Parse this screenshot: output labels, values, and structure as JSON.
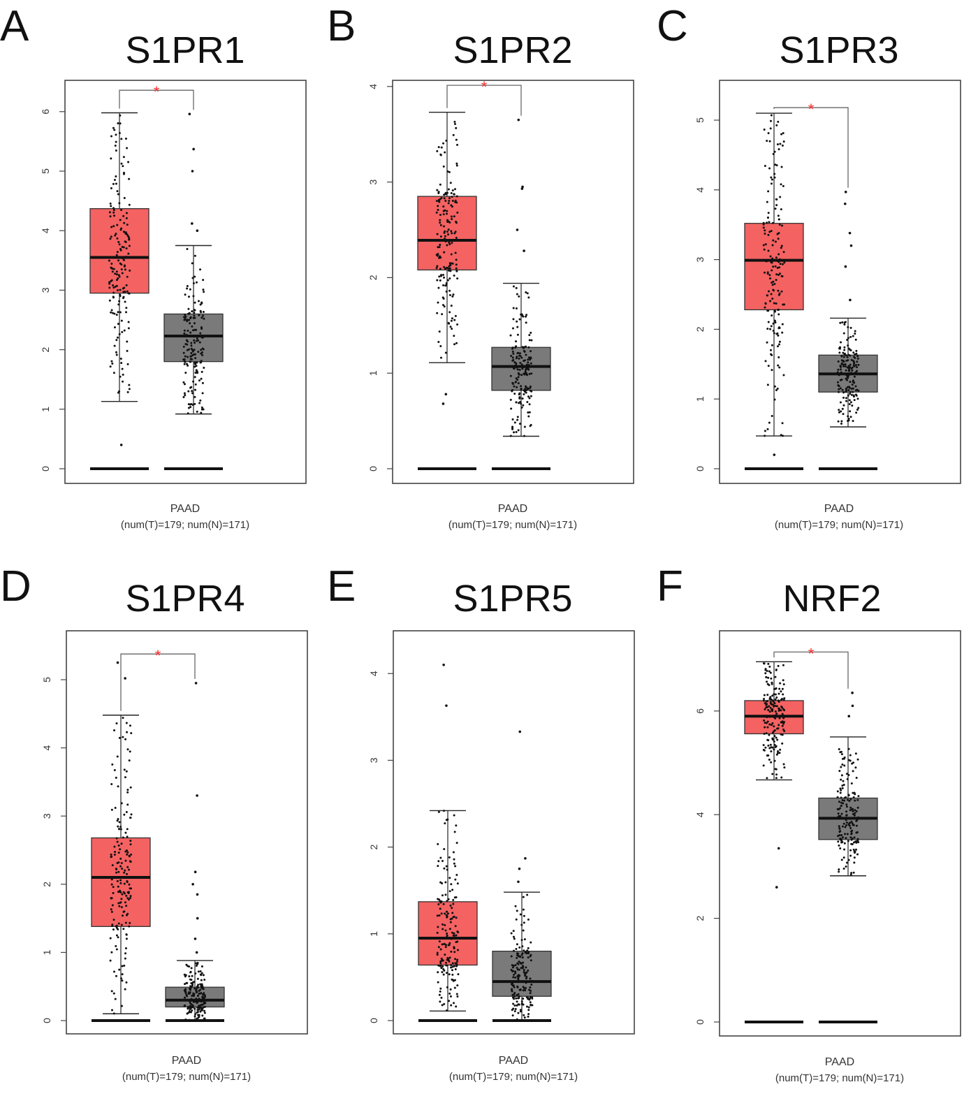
{
  "colors": {
    "tumor": "#f46262",
    "normal": "#7a7a7a",
    "significance": "#ff2a2a"
  },
  "chart_data": [
    {
      "type": "box",
      "panel": "A",
      "title": "S1PR1",
      "xlabel": "PAAD",
      "xsublabel": "(num(T)=179; num(N)=171)",
      "ylim": [
        0,
        6.5
      ],
      "yticks": [
        "0",
        "1",
        "2",
        "3",
        "4",
        "5",
        "6"
      ],
      "significance": "*",
      "groups": [
        {
          "name": "Tumor",
          "n": 179,
          "q1": 2.95,
          "median": 3.55,
          "q3": 4.37,
          "whisker_low": 1.13,
          "whisker_high": 5.98,
          "outliers": [
            0.4
          ]
        },
        {
          "name": "Normal",
          "n": 171,
          "q1": 1.8,
          "median": 2.23,
          "q3": 2.6,
          "whisker_low": 0.92,
          "whisker_high": 3.75,
          "outliers": [
            4.0,
            4.12,
            5.0,
            5.37,
            5.96
          ]
        }
      ]
    },
    {
      "type": "box",
      "panel": "B",
      "title": "S1PR2",
      "xlabel": "PAAD",
      "xsublabel": "(num(T)=179; num(N)=171)",
      "ylim": [
        0,
        4.1
      ],
      "yticks": [
        "0",
        "1",
        "2",
        "3",
        "4"
      ],
      "significance": "*",
      "groups": [
        {
          "name": "Tumor",
          "n": 179,
          "q1": 2.08,
          "median": 2.39,
          "q3": 2.85,
          "whisker_low": 1.11,
          "whisker_high": 3.73,
          "outliers": [
            0.68,
            0.78
          ]
        },
        {
          "name": "Normal",
          "n": 171,
          "q1": 0.82,
          "median": 1.07,
          "q3": 1.27,
          "whisker_low": 0.34,
          "whisker_high": 1.94,
          "outliers": [
            2.28,
            2.5,
            2.93,
            2.95,
            3.65
          ]
        }
      ]
    },
    {
      "type": "box",
      "panel": "C",
      "title": "S1PR3",
      "xlabel": "PAAD",
      "xsublabel": "(num(T)=179; num(N)=171)",
      "ylim": [
        0,
        5.3
      ],
      "yticks": [
        "0",
        "1",
        "2",
        "3",
        "4",
        "5"
      ],
      "significance": "*",
      "groups": [
        {
          "name": "Tumor",
          "n": 179,
          "q1": 2.28,
          "median": 2.99,
          "q3": 3.52,
          "whisker_low": 0.47,
          "whisker_high": 5.1,
          "outliers": [
            0.2
          ]
        },
        {
          "name": "Normal",
          "n": 171,
          "q1": 1.1,
          "median": 1.36,
          "q3": 1.63,
          "whisker_low": 0.6,
          "whisker_high": 2.16,
          "outliers": [
            2.42,
            2.9,
            3.2,
            3.38,
            3.8,
            3.97
          ]
        }
      ]
    },
    {
      "type": "box",
      "panel": "D",
      "title": "S1PR4",
      "xlabel": "PAAD",
      "xsublabel": "(num(T)=179; num(N)=171)",
      "ylim": [
        0,
        5.5
      ],
      "yticks": [
        "0",
        "1",
        "2",
        "3",
        "4",
        "5"
      ],
      "significance": "*",
      "groups": [
        {
          "name": "Tumor",
          "n": 179,
          "q1": 1.38,
          "median": 2.1,
          "q3": 2.68,
          "whisker_low": 0.1,
          "whisker_high": 4.48,
          "outliers": [
            5.02,
            5.25
          ]
        },
        {
          "name": "Normal",
          "n": 171,
          "q1": 0.2,
          "median": 0.3,
          "q3": 0.49,
          "whisker_low": 0.0,
          "whisker_high": 0.88,
          "outliers": [
            1.0,
            1.2,
            1.5,
            1.85,
            2.0,
            2.18,
            3.3,
            4.95
          ]
        }
      ]
    },
    {
      "type": "box",
      "panel": "E",
      "title": "S1PR5",
      "xlabel": "PAAD",
      "xsublabel": "(num(T)=179; num(N)=171)",
      "ylim": [
        0,
        4.4
      ],
      "yticks": [
        "0",
        "1",
        "2",
        "3",
        "4"
      ],
      "significance": "",
      "groups": [
        {
          "name": "Tumor",
          "n": 179,
          "q1": 0.64,
          "median": 0.95,
          "q3": 1.37,
          "whisker_low": 0.11,
          "whisker_high": 2.42,
          "outliers": [
            3.63,
            4.1
          ]
        },
        {
          "name": "Normal",
          "n": 171,
          "q1": 0.28,
          "median": 0.45,
          "q3": 0.8,
          "whisker_low": 0.0,
          "whisker_high": 1.48,
          "outliers": [
            1.6,
            1.75,
            1.87,
            3.33
          ]
        }
      ]
    },
    {
      "type": "box",
      "panel": "F",
      "title": "NRF2",
      "xlabel": "PAAD",
      "xsublabel": "(num(T)=179; num(N)=171)",
      "ylim": [
        0,
        7.3
      ],
      "yticks": [
        "0",
        "2",
        "4",
        "6"
      ],
      "significance": "*",
      "groups": [
        {
          "name": "Tumor",
          "n": 179,
          "q1": 5.56,
          "median": 5.9,
          "q3": 6.2,
          "whisker_low": 4.67,
          "whisker_high": 6.95,
          "outliers": [
            2.6,
            3.35
          ]
        },
        {
          "name": "Normal",
          "n": 171,
          "q1": 3.52,
          "median": 3.93,
          "q3": 4.32,
          "whisker_low": 2.82,
          "whisker_high": 5.5,
          "outliers": [
            5.9,
            6.1,
            6.35
          ]
        }
      ]
    }
  ]
}
